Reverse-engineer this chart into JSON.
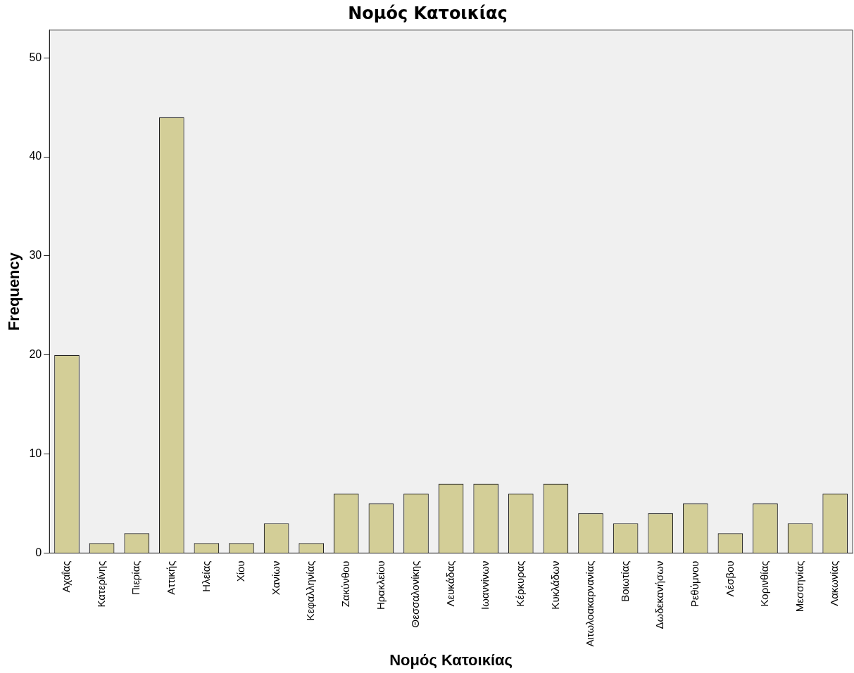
{
  "chart_data": {
    "type": "bar",
    "title": "Νομός Κατοικίας",
    "xlabel": "Νομός Κατοικίας",
    "ylabel": "Frequency",
    "categories": [
      "Αχαΐας",
      "Κατερίνης",
      "Πιερίας",
      "Αττικής",
      "Ηλείας",
      "Χίου",
      "Χανίων",
      "Κεφαλληνίας",
      "Ζακύνθου",
      "Ηρακλείου",
      "Θεσσαλονίκης",
      "Λευκάδας",
      "Ιωαννίνων",
      "Κέρκυρας",
      "Κυκλάδων",
      "Αιτωλοακαρνανίας",
      "Βοιωτίας",
      "Δωδεκανήσων",
      "Ρεθύμνου",
      "Λέσβου",
      "Κορινθίας",
      "Μεσσηνίας",
      "Λακωνίας"
    ],
    "values": [
      20,
      1,
      2,
      44,
      1,
      1,
      3,
      1,
      6,
      5,
      6,
      7,
      7,
      6,
      7,
      4,
      3,
      4,
      5,
      2,
      5,
      3,
      6
    ],
    "color": "#d3ce97",
    "ylim": [
      0,
      52.8
    ],
    "yticks": [
      0,
      10,
      20,
      30,
      40,
      50
    ],
    "grid": false,
    "legend": false
  }
}
